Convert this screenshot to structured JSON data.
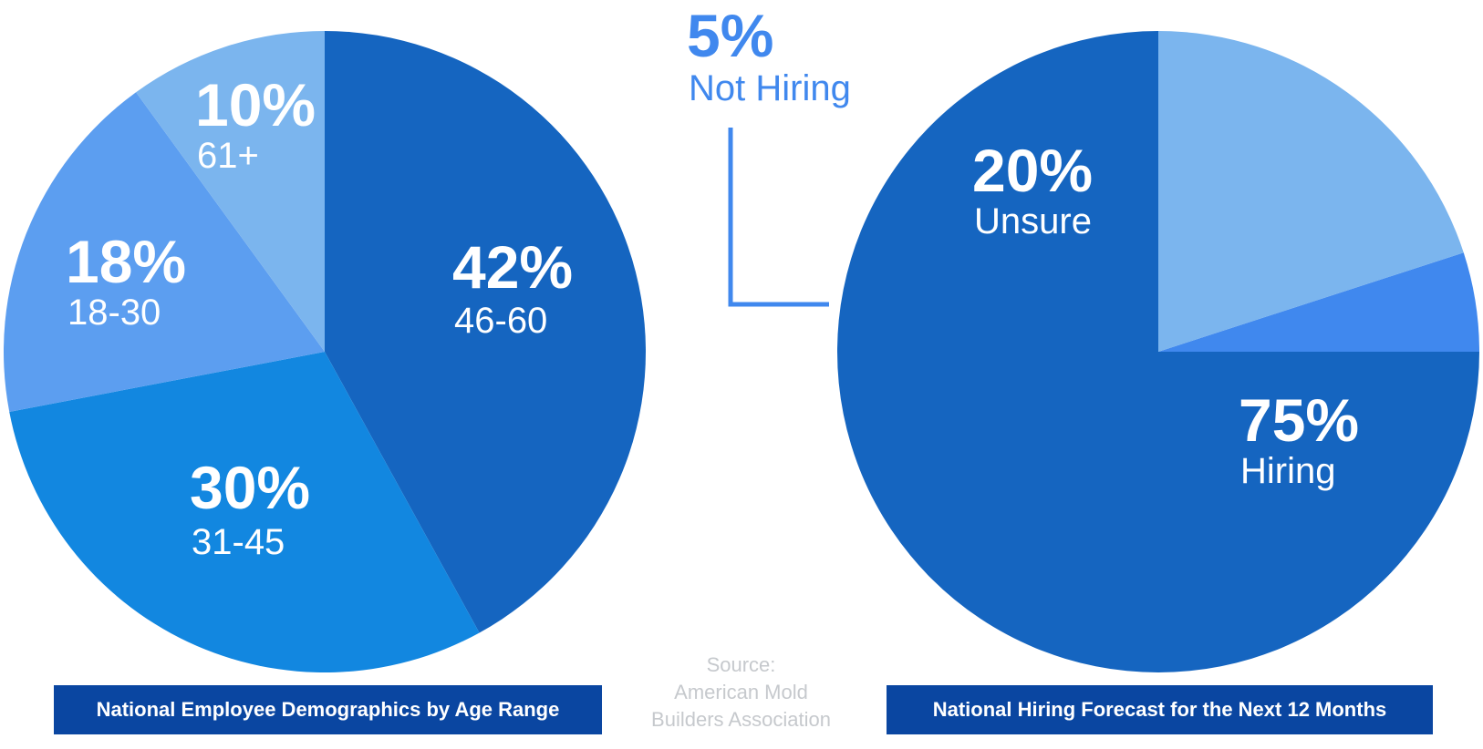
{
  "colors": {
    "dark_blue": "#1565c0",
    "mid_blue": "#1287e0",
    "light_blue": "#5c9ef0",
    "pale_blue": "#7bb5ee",
    "accent_blue": "#4088ee",
    "banner_blue": "#0a46a1",
    "source_gray": "#c6c9cd"
  },
  "chart_data": [
    {
      "type": "pie",
      "title": "National Employee Demographics by Age Range",
      "slices": [
        {
          "label": "46-60",
          "value": 42,
          "display": "42%",
          "color": "#1565c0"
        },
        {
          "label": "31-45",
          "value": 30,
          "display": "30%",
          "color": "#1287e0"
        },
        {
          "label": "18-30",
          "value": 18,
          "display": "18%",
          "color": "#5c9ef0"
        },
        {
          "label": "61+",
          "value": 10,
          "display": "10%",
          "color": "#7bb5ee"
        }
      ]
    },
    {
      "type": "pie",
      "title": "National Hiring Forecast for the Next 12 Months",
      "slices": [
        {
          "label": "Hiring",
          "value": 75,
          "display": "75%",
          "color": "#1565c0"
        },
        {
          "label": "Not Hiring",
          "value": 5,
          "display": "5%",
          "color": "#4088ee"
        },
        {
          "label": "Unsure",
          "value": 20,
          "display": "20%",
          "color": "#7bb5ee"
        }
      ]
    }
  ],
  "source": {
    "line1": "Source:",
    "line2": "American Mold",
    "line3": "Builders Association"
  }
}
